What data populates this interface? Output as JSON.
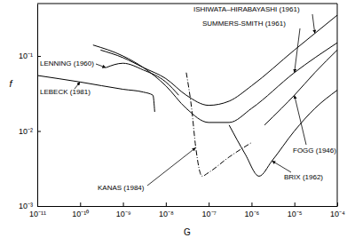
{
  "chart_data": {
    "type": "line",
    "x_label": "G",
    "y_label": "f",
    "log": true,
    "grid": false,
    "color": "#000000",
    "xlim": [
      1e-11,
      0.0001
    ],
    "ylim": [
      0.001,
      0.5
    ],
    "xticks": [
      {
        "value": 1e-11,
        "label": "10⁻¹¹"
      },
      {
        "value": 1e-10,
        "label": "10⁻¹⁰"
      },
      {
        "value": 1e-09,
        "label": "10⁻⁹"
      },
      {
        "value": 1e-08,
        "label": "10⁻⁸"
      },
      {
        "value": 1e-07,
        "label": "10⁻⁷"
      },
      {
        "value": 1e-06,
        "label": "10⁻⁶"
      },
      {
        "value": 1e-05,
        "label": "10⁻⁵"
      },
      {
        "value": 0.0001,
        "label": "10⁻⁴"
      }
    ],
    "yticks": [
      {
        "value": 0.001,
        "label": "10⁻³"
      },
      {
        "value": 0.01,
        "label": "10⁻²"
      },
      {
        "value": 0.1,
        "label": "10⁻¹"
      }
    ],
    "series": [
      {
        "name": "ISHIWATA–HIRABAYASHI (1961)",
        "line_style": "solid",
        "x": [
          3e-10,
          1e-09,
          3e-09,
          1e-08,
          3e-08,
          1e-07,
          3e-07,
          1e-06,
          1e-05,
          3e-05,
          0.0001
        ],
        "values": [
          0.12,
          0.095,
          0.07,
          0.05,
          0.03,
          0.022,
          0.025,
          0.04,
          0.12,
          0.2,
          0.35
        ]
      },
      {
        "name": "SUMMERS-SMITH (1961)",
        "line_style": "solid",
        "x": [
          2e-10,
          1e-09,
          3e-09,
          1e-08,
          3e-08,
          1e-07,
          3e-07,
          1e-06,
          1e-05,
          0.0001
        ],
        "values": [
          0.14,
          0.1,
          0.07,
          0.04,
          0.02,
          0.013,
          0.013,
          0.02,
          0.06,
          0.15
        ]
      },
      {
        "name": "LENNING (1960)",
        "line_style": "solid",
        "x": [
          4e-10,
          1e-09,
          3e-09,
          1e-08,
          2e-08
        ],
        "values": [
          0.07,
          0.08,
          0.065,
          0.045,
          0.03
        ]
      },
      {
        "name": "LEBECK (1981)",
        "line_style": "solid",
        "x": [
          1e-11,
          1e-10,
          1e-09,
          3e-09,
          5e-09,
          5.5e-09
        ],
        "values": [
          0.055,
          0.045,
          0.036,
          0.033,
          0.03,
          0.018
        ]
      },
      {
        "name": "KANAS (1984)",
        "line_style": "dashdot",
        "x": [
          3e-08,
          4e-08,
          5e-08,
          7e-08,
          1e-07,
          3e-07,
          1e-06
        ],
        "values": [
          0.06,
          0.02,
          0.006,
          0.0025,
          0.0028,
          0.0045,
          0.007
        ]
      },
      {
        "name": "FOGG (1946)",
        "line_style": "solid",
        "x": [
          2e-06,
          5e-06,
          1e-05,
          3e-05,
          0.0001
        ],
        "values": [
          0.012,
          0.02,
          0.03,
          0.06,
          0.12
        ]
      },
      {
        "name": "BRIX (1962)",
        "line_style": "solid",
        "x": [
          3e-07,
          7e-07,
          1.5e-06,
          3e-06,
          1e-05,
          3e-05,
          0.0001
        ],
        "values": [
          0.012,
          0.005,
          0.0025,
          0.004,
          0.01,
          0.02,
          0.035
        ]
      }
    ]
  }
}
